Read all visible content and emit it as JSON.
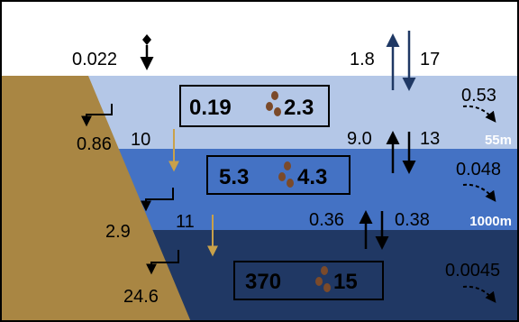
{
  "title": "",
  "layers": {
    "surface": {
      "color": "#b4c7e7"
    },
    "intermediate": {
      "color": "#4472c4",
      "depth_label": "55m"
    },
    "deep": {
      "color": "#203864",
      "depth_label": "1000m"
    },
    "land": {
      "color": "#a98643"
    }
  },
  "atmosphere_deposition": "0.022",
  "air_sea_exchange": {
    "up": "1.8",
    "down": "17"
  },
  "surface_box": {
    "dissolved": "0.19",
    "particulate": "2.3"
  },
  "intermediate_box": {
    "dissolved": "5.3",
    "particulate": "4.3"
  },
  "deep_box": {
    "dissolved": "370",
    "particulate": "15"
  },
  "mixing_surface_intermediate": {
    "up": "9.0",
    "down": "13"
  },
  "mixing_intermediate_deep": {
    "up": "0.36",
    "down": "0.38"
  },
  "land_inputs": {
    "surface": "0.86",
    "intermediate": "2.9",
    "deep": "24.6"
  },
  "particle_settling": {
    "surface_to_intermediate": "10",
    "intermediate_to_deep": "11"
  },
  "lateral_export": {
    "surface": "0.53",
    "intermediate": "0.048",
    "deep": "0.0045"
  },
  "colors": {
    "particle": "#7b4a2a",
    "settling_arrow": "#c9a14a",
    "arrow_dark": "#000000",
    "arrow_blue": "#1f3864",
    "depth_label": "#ffffff"
  }
}
